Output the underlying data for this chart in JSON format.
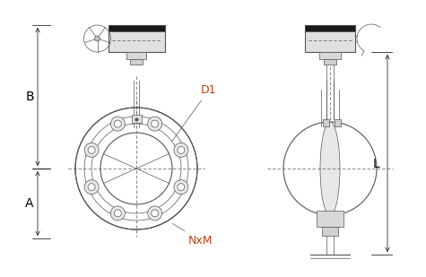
{
  "bg_color": "#ffffff",
  "line_color": "#555555",
  "dim_color": "#000000",
  "label_D1": "D1",
  "label_NxM": "NxM",
  "label_L": "L",
  "label_B": "B",
  "label_A": "A",
  "color_D1": "#c04010",
  "color_NxM": "#c04010",
  "color_L": "#000000",
  "color_AB": "#000000"
}
